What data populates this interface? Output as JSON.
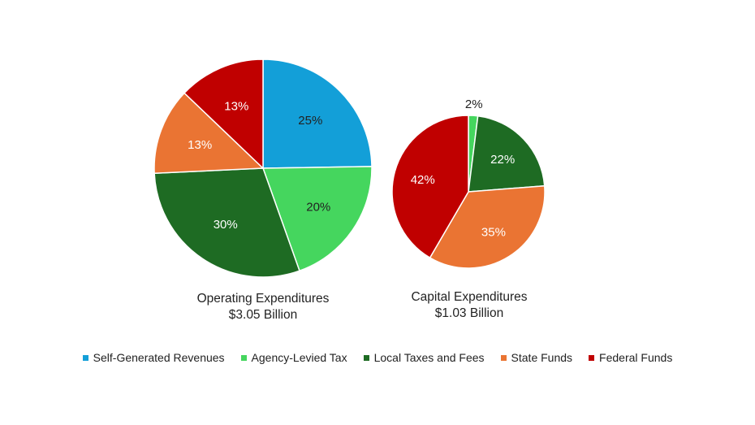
{
  "chart_data": [
    {
      "type": "pie",
      "title": "Operating Expenditures",
      "subtitle": "$3.05 Billion",
      "slices": [
        {
          "label": "Self-Generated Revenues",
          "value": 25,
          "display": "25%"
        },
        {
          "label": "Agency-Levied Tax",
          "value": 20,
          "display": "20%"
        },
        {
          "label": "Local Taxes and Fees",
          "value": 30,
          "display": "30%"
        },
        {
          "label": "State Funds",
          "value": 13,
          "display": "13%"
        },
        {
          "label": "Federal Funds",
          "value": 13,
          "display": "13%"
        }
      ]
    },
    {
      "type": "pie",
      "title": "Capital Expenditures",
      "subtitle": "$1.03 Billion",
      "slices": [
        {
          "label": "Agency-Levied Tax",
          "value": 2,
          "display": "2%"
        },
        {
          "label": "Local Taxes and Fees",
          "value": 22,
          "display": "22%"
        },
        {
          "label": "State Funds",
          "value": 35,
          "display": "35%"
        },
        {
          "label": "Federal Funds",
          "value": 42,
          "display": "42%"
        }
      ]
    }
  ],
  "legend": {
    "placement": "bottom",
    "items": [
      {
        "label": "Self-Generated Revenues",
        "color": "#139fd8"
      },
      {
        "label": "Agency-Levied Tax",
        "color": "#45d65e"
      },
      {
        "label": "Local Taxes and Fees",
        "color": "#1e6b23"
      },
      {
        "label": "State Funds",
        "color": "#ea7433"
      },
      {
        "label": "Federal Funds",
        "color": "#c00000"
      }
    ]
  }
}
